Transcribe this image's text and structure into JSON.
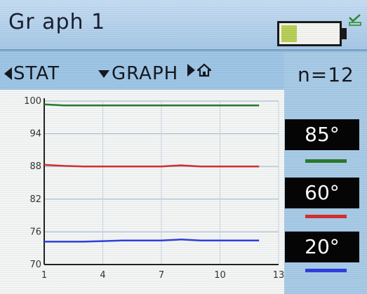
{
  "title": "Gr aph 1",
  "battery": {
    "level": 0.28,
    "fill_color": "#b8cf58"
  },
  "status_icon": "checkmark-envelope-icon",
  "nav": {
    "stat_label": "STAT",
    "graph_label": "GRAPH",
    "home_icon": "home-icon"
  },
  "count_label": "n=12",
  "legend": [
    {
      "label": "85°",
      "color": "#2a7a2a"
    },
    {
      "label": "60°",
      "color": "#d63030"
    },
    {
      "label": "20°",
      "color": "#2f3fe0"
    }
  ],
  "chart_data": {
    "type": "line",
    "x_ticks": [
      "1",
      "4",
      "7",
      "10",
      "13"
    ],
    "y_ticks": [
      "100",
      "94",
      "88",
      "82",
      "76",
      "70"
    ],
    "xlim": [
      1,
      13
    ],
    "ylim": [
      70,
      100
    ],
    "grid": true,
    "series": [
      {
        "name": "85°",
        "color": "#2a7a2a",
        "x": [
          1,
          2,
          3,
          4,
          5,
          6,
          7,
          8,
          9,
          10,
          11,
          12
        ],
        "values": [
          99.4,
          99.2,
          99.2,
          99.2,
          99.2,
          99.2,
          99.2,
          99.2,
          99.2,
          99.2,
          99.2,
          99.2
        ]
      },
      {
        "name": "60°",
        "color": "#d63030",
        "x": [
          1,
          2,
          3,
          4,
          5,
          6,
          7,
          8,
          9,
          10,
          11,
          12
        ],
        "values": [
          88.3,
          88.1,
          88.0,
          88.0,
          88.0,
          88.0,
          88.0,
          88.2,
          88.0,
          88.0,
          88.0,
          88.0
        ]
      },
      {
        "name": "20°",
        "color": "#2f3fe0",
        "x": [
          1,
          2,
          3,
          4,
          5,
          6,
          7,
          8,
          9,
          10,
          11,
          12
        ],
        "values": [
          74.2,
          74.2,
          74.2,
          74.3,
          74.4,
          74.4,
          74.4,
          74.6,
          74.4,
          74.4,
          74.4,
          74.4
        ]
      }
    ]
  }
}
